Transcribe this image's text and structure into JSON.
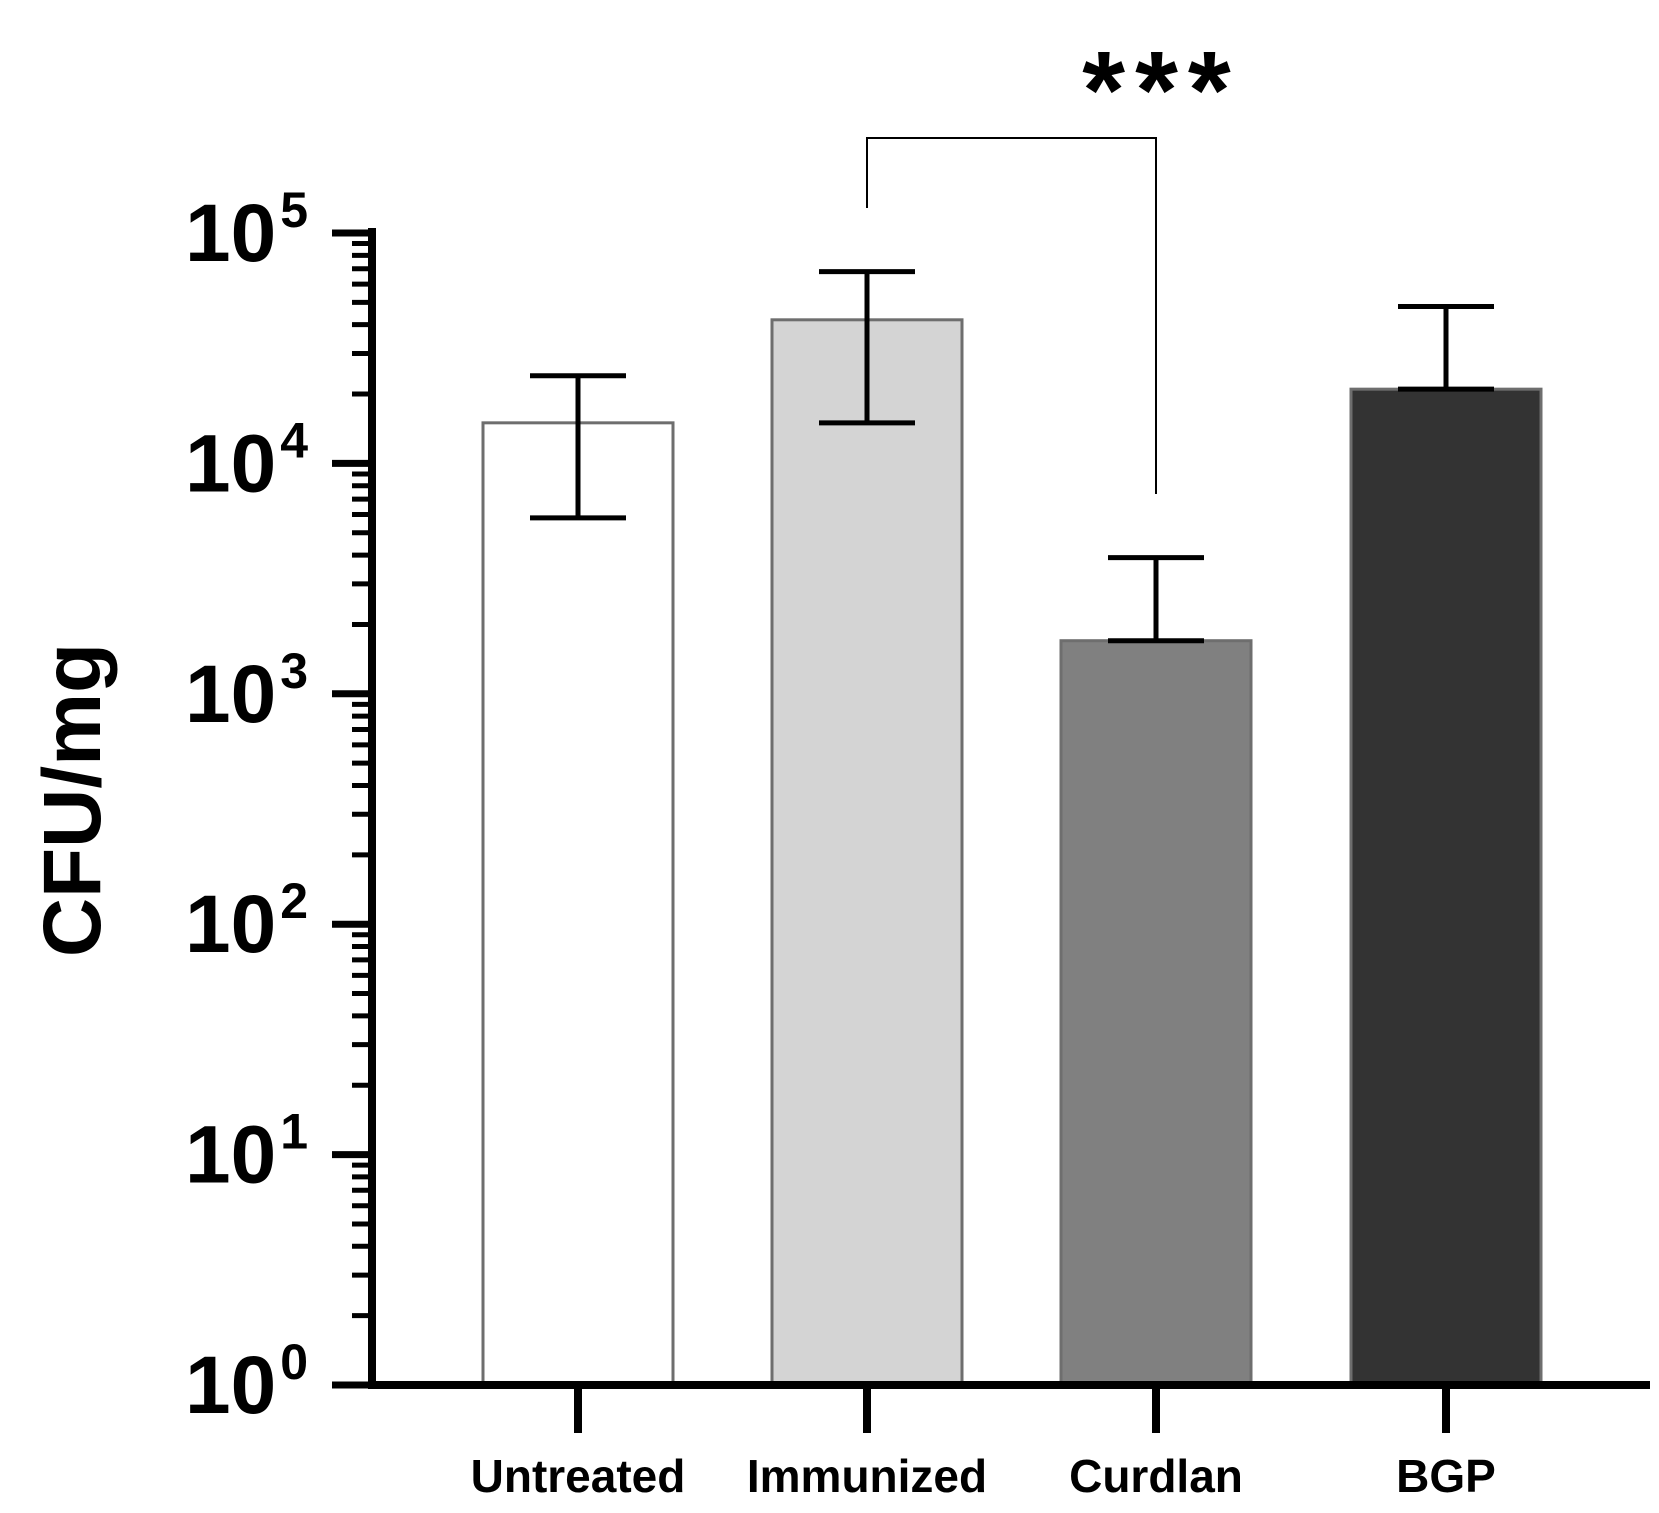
{
  "chart_data": {
    "type": "bar",
    "title": "",
    "xlabel": "",
    "ylabel": "CFU/mg",
    "yscale": "log",
    "ylim": [
      1,
      100000
    ],
    "yticks": [
      {
        "base": "10",
        "exp": "0",
        "value": 1
      },
      {
        "base": "10",
        "exp": "1",
        "value": 10
      },
      {
        "base": "10",
        "exp": "2",
        "value": 100
      },
      {
        "base": "10",
        "exp": "3",
        "value": 1000
      },
      {
        "base": "10",
        "exp": "4",
        "value": 10000
      },
      {
        "base": "10",
        "exp": "5",
        "value": 100000
      }
    ],
    "categories": [
      "Untreated",
      "Immunized",
      "Curdlan",
      "BGP"
    ],
    "values": [
      15000,
      42000,
      1700,
      21000
    ],
    "error_low": [
      5800,
      15000,
      1700,
      21000
    ],
    "error_high": [
      24000,
      68000,
      3900,
      48000
    ],
    "colors": [
      "#ffffff",
      "#d4d4d4",
      "#808080",
      "#333333"
    ],
    "significance": [
      {
        "from": "Immunized",
        "to": "Curdlan",
        "label": "***"
      }
    ]
  }
}
